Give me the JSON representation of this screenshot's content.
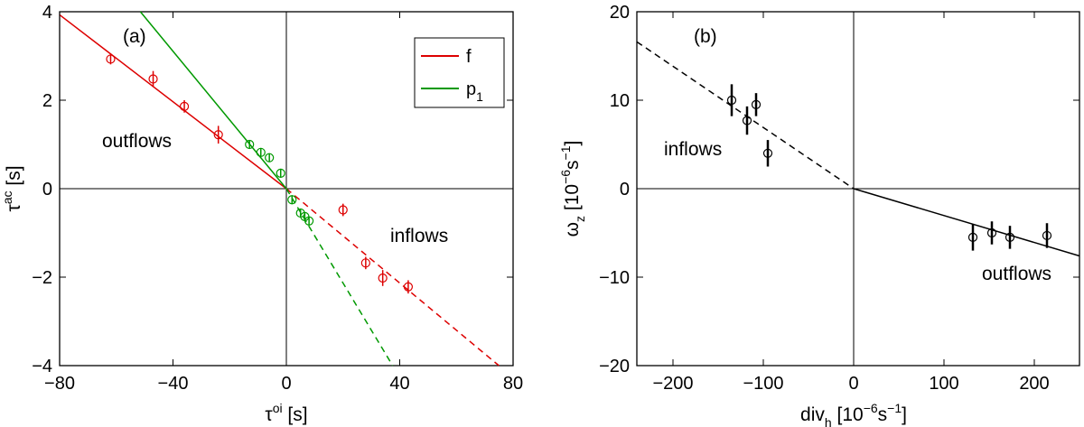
{
  "chart_data": [
    {
      "type": "scatter",
      "panel_label": "(a)",
      "xlabel": {
        "base": "τ",
        "sup": "oi",
        "unit": " [s]"
      },
      "ylabel": {
        "base": "τ",
        "sup": "ac",
        "unit": " [s]"
      },
      "xlim": [
        -80,
        80
      ],
      "ylim": [
        -4,
        4
      ],
      "xticks": [
        "−80",
        "−40",
        "0",
        "40",
        "80"
      ],
      "yticks": [
        "4",
        "2",
        "0",
        "−2",
        "−4"
      ],
      "xtick_values": [
        -80,
        -40,
        0,
        40,
        80
      ],
      "ytick_values": [
        4,
        2,
        0,
        -2,
        -4
      ],
      "annotations": [
        "outflows",
        "inflows"
      ],
      "legend": {
        "placement": "top-right",
        "entries": [
          {
            "name": "f",
            "sub": "",
            "color": "#dd0000"
          },
          {
            "name": "p",
            "sub": "1",
            "color": "#009900"
          }
        ]
      },
      "series": [
        {
          "name": "f",
          "color": "#dd0000",
          "points": [
            {
              "x": -62,
              "y": 2.93,
              "err": 0.12
            },
            {
              "x": -47,
              "y": 2.48,
              "err": 0.18
            },
            {
              "x": -36,
              "y": 1.86,
              "err": 0.14
            },
            {
              "x": -24,
              "y": 1.22,
              "err": 0.2
            },
            {
              "x": 20,
              "y": -0.48,
              "err": 0.14
            },
            {
              "x": 28,
              "y": -1.68,
              "err": 0.14
            },
            {
              "x": 34,
              "y": -2.02,
              "err": 0.18
            },
            {
              "x": 43,
              "y": -2.22,
              "err": 0.15
            }
          ],
          "fit_solid": [
            [
              -80,
              3.93
            ],
            [
              0,
              0
            ]
          ],
          "fit_dashed": [
            [
              0,
              0
            ],
            [
              75,
              -4
            ]
          ]
        },
        {
          "name": "p1",
          "color": "#009900",
          "points": [
            {
              "x": -13,
              "y": 1.0,
              "err": 0.1
            },
            {
              "x": -9,
              "y": 0.82,
              "err": 0.1
            },
            {
              "x": -6,
              "y": 0.7,
              "err": 0.1
            },
            {
              "x": -2,
              "y": 0.35,
              "err": 0.1
            },
            {
              "x": 2,
              "y": -0.25,
              "err": 0.1
            },
            {
              "x": 5,
              "y": -0.55,
              "err": 0.1
            },
            {
              "x": 6.5,
              "y": -0.63,
              "err": 0.1
            },
            {
              "x": 8,
              "y": -0.73,
              "err": 0.1
            }
          ],
          "fit_solid": [
            [
              -51.5,
              4
            ],
            [
              0,
              0
            ]
          ],
          "fit_dashed": [
            [
              0,
              0
            ],
            [
              37.5,
              -4
            ]
          ]
        }
      ]
    },
    {
      "type": "scatter",
      "panel_label": "(b)",
      "xlabel": {
        "base": "div",
        "sub": "h",
        "unit": " [10",
        "unit_sup": "−6",
        "unit_tail": "s",
        "unit_sup2": "−1",
        "unit_end": "]"
      },
      "ylabel": {
        "base": "ω",
        "sub": "z",
        "unit": " [10",
        "unit_sup": "−6",
        "unit_tail": "s",
        "unit_sup2": "−1",
        "unit_end": "]"
      },
      "xlim": [
        -240,
        250
      ],
      "ylim": [
        -20,
        20
      ],
      "xticks": [
        "−200",
        "−100",
        "0",
        "100",
        "200"
      ],
      "yticks": [
        "20",
        "10",
        "0",
        "−10",
        "−20"
      ],
      "xtick_values": [
        -200,
        -100,
        0,
        100,
        200
      ],
      "ytick_values": [
        20,
        10,
        0,
        -10,
        -20
      ],
      "annotations": [
        "inflows",
        "outflows"
      ],
      "series": [
        {
          "name": "",
          "color": "#000000",
          "points": [
            {
              "x": -135,
              "y": 10.0,
              "err": 1.8
            },
            {
              "x": -118,
              "y": 7.7,
              "err": 1.6
            },
            {
              "x": -108,
              "y": 9.5,
              "err": 1.3
            },
            {
              "x": -95,
              "y": 4.0,
              "err": 1.5
            },
            {
              "x": 132,
              "y": -5.5,
              "err": 1.5
            },
            {
              "x": 153,
              "y": -5.0,
              "err": 1.3
            },
            {
              "x": 173,
              "y": -5.5,
              "err": 1.3
            },
            {
              "x": 214,
              "y": -5.3,
              "err": 1.4
            }
          ],
          "fit_dashed": [
            [
              -240,
              16.6
            ],
            [
              0,
              0
            ]
          ],
          "fit_solid": [
            [
              0,
              0
            ],
            [
              250,
              -7.6
            ]
          ]
        }
      ]
    }
  ]
}
